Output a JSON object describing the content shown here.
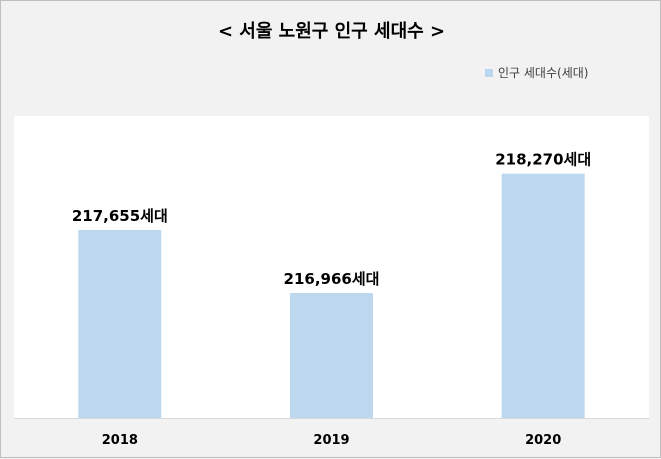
{
  "chart_data": {
    "type": "bar",
    "title": "< 서울 노원구 인구 세대수 >",
    "categories": [
      "2018",
      "2019",
      "2020"
    ],
    "series": [
      {
        "name": "인구 세대수(세대)",
        "values": [
          217655,
          216966,
          218270
        ],
        "data_labels": [
          "217,655세대",
          "216,966세대",
          "218,270세대"
        ]
      }
    ],
    "ylim": [
      215600,
      218900
    ],
    "grid": false,
    "legend_position": "top-right",
    "colors": {
      "bar": "#bdd7ee",
      "plot_background": "#ffffff",
      "chart_background": "#f2f2f2"
    }
  }
}
